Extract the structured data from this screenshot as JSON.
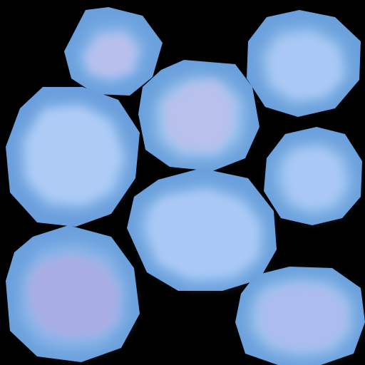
{
  "image": {
    "kind": "texture",
    "background_color": "#000000"
  },
  "blobs": [
    {
      "id": "top-left-small",
      "shape": "octagon",
      "outer_color": "#6aa0dc",
      "mid_color": "#8ab8ec",
      "inner_color": "#b7c0ec",
      "core_tint": "lavender"
    },
    {
      "id": "top-right",
      "shape": "octagon",
      "outer_color": "#6aa0dc",
      "mid_color": "#9cc4f0",
      "inner_color": "#aac8f5",
      "core_tint": "pale-blue"
    },
    {
      "id": "center-top",
      "shape": "octagon",
      "outer_color": "#6aa0dc",
      "mid_color": "#9cc4ee",
      "inner_color": "#b8c0ec",
      "core_tint": "lavender"
    },
    {
      "id": "left-large",
      "shape": "octagon",
      "outer_color": "#6a9edc",
      "mid_color": "#a2c8f4",
      "inner_color": "#aecbf6",
      "core_tint": "pale-blue"
    },
    {
      "id": "right-mid",
      "shape": "octagon",
      "outer_color": "#6aa0dc",
      "mid_color": "#9cc4f0",
      "inner_color": "#aac8f5",
      "core_tint": "pale-blue"
    },
    {
      "id": "center-bottom",
      "shape": "octagon",
      "outer_color": "#6aa0dc",
      "mid_color": "#a2c8f4",
      "inner_color": "#aac8f5",
      "core_tint": "pale-blue"
    },
    {
      "id": "bottom-left",
      "shape": "octagon",
      "outer_color": "#6aa0dc",
      "mid_color": "#8cb6ea",
      "inner_color": "#a8aee4",
      "core_tint": "violet"
    },
    {
      "id": "bottom-right",
      "shape": "octagon",
      "outer_color": "#6aa0dc",
      "mid_color": "#9cc2ee",
      "inner_color": "#acbcee",
      "core_tint": "lavender"
    }
  ]
}
